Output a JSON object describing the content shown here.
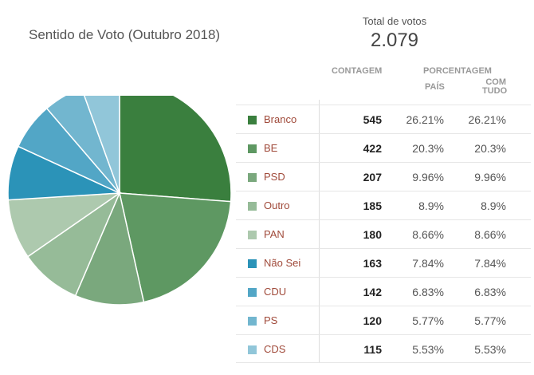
{
  "title": "Sentido de Voto (Outubro 2018)",
  "total": {
    "label": "Total de votos",
    "value": "2.079"
  },
  "headers": {
    "count": "CONTAGEM",
    "percent": "PORCENTAGEM",
    "country": "PAÍS",
    "all_line1": "COM",
    "all_line2": "TUDO"
  },
  "chart_data": {
    "type": "pie",
    "title": "Sentido de Voto (Outubro 2018)",
    "total": 2079,
    "slices": [
      {
        "label": "Branco",
        "count": 545,
        "pct": "26.21%",
        "pct_all": "26.21%",
        "value": 26.21,
        "color": "#3a7f3e"
      },
      {
        "label": "BE",
        "count": 422,
        "pct": "20.3%",
        "pct_all": "20.3%",
        "value": 20.3,
        "color": "#5e9862"
      },
      {
        "label": "PSD",
        "count": 207,
        "pct": "9.96%",
        "pct_all": "9.96%",
        "value": 9.96,
        "color": "#7aa87d"
      },
      {
        "label": "Outro",
        "count": 185,
        "pct": "8.9%",
        "pct_all": "8.9%",
        "value": 8.9,
        "color": "#96bb98"
      },
      {
        "label": "PAN",
        "count": 180,
        "pct": "8.66%",
        "pct_all": "8.66%",
        "value": 8.66,
        "color": "#adc9ae"
      },
      {
        "label": "Não Sei",
        "count": 163,
        "pct": "7.84%",
        "pct_all": "7.84%",
        "value": 7.84,
        "color": "#2b93b8"
      },
      {
        "label": "CDU",
        "count": 142,
        "pct": "6.83%",
        "pct_all": "6.83%",
        "value": 6.83,
        "color": "#52a6c6"
      },
      {
        "label": "PS",
        "count": 120,
        "pct": "5.77%",
        "pct_all": "5.77%",
        "value": 5.77,
        "color": "#72b6cf"
      },
      {
        "label": "CDS",
        "count": 115,
        "pct": "5.53%",
        "pct_all": "5.53%",
        "value": 5.53,
        "color": "#91c6d9"
      }
    ]
  }
}
